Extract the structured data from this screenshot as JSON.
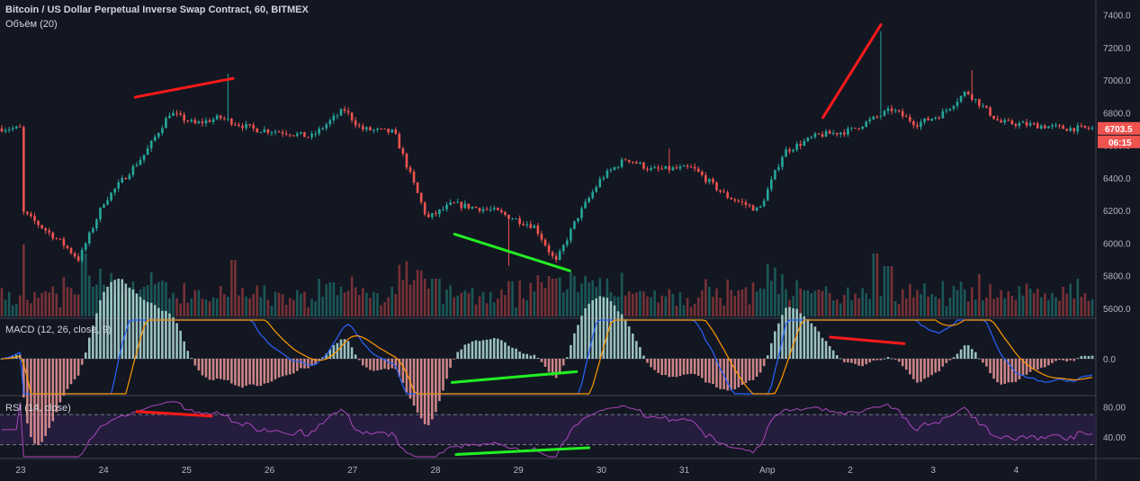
{
  "header": {
    "title": "Bitcoin / US Dollar Perpetual Inverse Swap Contract, 60, BITMEX",
    "volume_label": "Объём (20)",
    "macd_label": "MACD (12, 26, close, 9)",
    "rsi_label": "RSI (14, close)"
  },
  "price_tags": {
    "last_price": "6703.5",
    "countdown": "06:15",
    "color": "#ef5350"
  },
  "colors": {
    "background": "#131722",
    "up": "#26a69a",
    "down": "#ef5350",
    "divergence_bearish": "#ff1a1a",
    "divergence_bullish": "#22ee22",
    "macd_line": "#2962ff",
    "signal_line": "#ff9800",
    "rsi_line": "#ab47bc",
    "rsi_band": "#2a1f45"
  },
  "chart_data": [
    {
      "type": "candlestick",
      "title": "Bitcoin / US Dollar Perpetual Inverse Swap Contract, 60, BITMEX",
      "x_tick_labels": [
        "23",
        "24",
        "25",
        "26",
        "27",
        "28",
        "29",
        "30",
        "31",
        "Апр",
        "2",
        "3",
        "4"
      ],
      "y_tick_labels": [
        "5600.0",
        "5800.0",
        "6000.0",
        "6200.0",
        "6400.0",
        "6600.0",
        "6800.0",
        "7000.0",
        "7200.0",
        "7400.0"
      ],
      "ylim": [
        5550,
        7480
      ],
      "last_price": 6703.5,
      "close_anchors": [
        [
          0,
          6200
        ],
        [
          0.5,
          6000
        ],
        [
          0.7,
          5900
        ],
        [
          1.0,
          6250
        ],
        [
          1.5,
          6550
        ],
        [
          1.8,
          6800
        ],
        [
          2.1,
          6730
        ],
        [
          2.4,
          6770
        ],
        [
          2.8,
          6700
        ],
        [
          3.2,
          6680
        ],
        [
          3.5,
          6650
        ],
        [
          3.9,
          6820
        ],
        [
          4.1,
          6700
        ],
        [
          4.5,
          6680
        ],
        [
          4.9,
          6150
        ],
        [
          5.2,
          6240
        ],
        [
          5.7,
          6200
        ],
        [
          6.2,
          6100
        ],
        [
          6.45,
          5880
        ],
        [
          6.7,
          6150
        ],
        [
          7.0,
          6400
        ],
        [
          7.3,
          6520
        ],
        [
          7.6,
          6450
        ],
        [
          8.1,
          6460
        ],
        [
          8.5,
          6290
        ],
        [
          8.9,
          6200
        ],
        [
          9.2,
          6560
        ],
        [
          9.6,
          6660
        ],
        [
          10.0,
          6690
        ],
        [
          10.5,
          6820
        ],
        [
          10.8,
          6730
        ],
        [
          11.1,
          6790
        ],
        [
          11.4,
          6930
        ],
        [
          11.8,
          6740
        ],
        [
          12.3,
          6720
        ],
        [
          12.6,
          6703.5
        ]
      ],
      "wick_spikes": [
        [
          2.5,
          7040
        ],
        [
          5.9,
          5860
        ],
        [
          7.8,
          6580
        ],
        [
          10.35,
          7300
        ],
        [
          11.45,
          7060
        ]
      ]
    },
    {
      "type": "bar",
      "title": "Объём (20)",
      "spikes": [
        [
          0.75,
          5
        ],
        [
          2.55,
          4.5
        ],
        [
          5.0,
          3
        ],
        [
          5.9,
          2.8
        ],
        [
          6.45,
          3
        ],
        [
          9.0,
          2.2
        ],
        [
          10.3,
          5
        ],
        [
          10.45,
          4
        ]
      ]
    },
    {
      "type": "line",
      "title": "MACD (12, 26, close, 9)",
      "y_tick_labels": [
        "0.0"
      ],
      "series": [
        {
          "values": "MACD line"
        },
        {
          "values": "Signal line"
        },
        {
          "values": "Histogram"
        }
      ]
    },
    {
      "type": "line",
      "title": "RSI (14, close)",
      "y_tick_labels": [
        "80.00",
        "40.00"
      ],
      "ylim": [
        14,
        94
      ],
      "bands": [
        70,
        30
      ]
    }
  ],
  "divergences": [
    {
      "pane": "price",
      "color": "bearish",
      "from": [
        1.38,
        6895
      ],
      "to": [
        2.56,
        7010
      ]
    },
    {
      "pane": "price",
      "color": "bullish",
      "from": [
        5.23,
        6055
      ],
      "to": [
        6.62,
        5830
      ]
    },
    {
      "pane": "price",
      "color": "bearish",
      "from": [
        9.67,
        6770
      ],
      "to": [
        10.37,
        7340
      ]
    },
    {
      "pane": "macd",
      "color": "bullish",
      "from": [
        5.2,
        -22
      ],
      "to": [
        6.7,
        -12
      ]
    },
    {
      "pane": "macd",
      "color": "bearish",
      "from": [
        9.76,
        20
      ],
      "to": [
        10.65,
        14
      ]
    },
    {
      "pane": "rsi",
      "color": "bearish",
      "from": [
        1.4,
        74
      ],
      "to": [
        2.3,
        68
      ]
    },
    {
      "pane": "rsi",
      "color": "bullish",
      "from": [
        5.25,
        17
      ],
      "to": [
        6.85,
        26
      ]
    }
  ]
}
